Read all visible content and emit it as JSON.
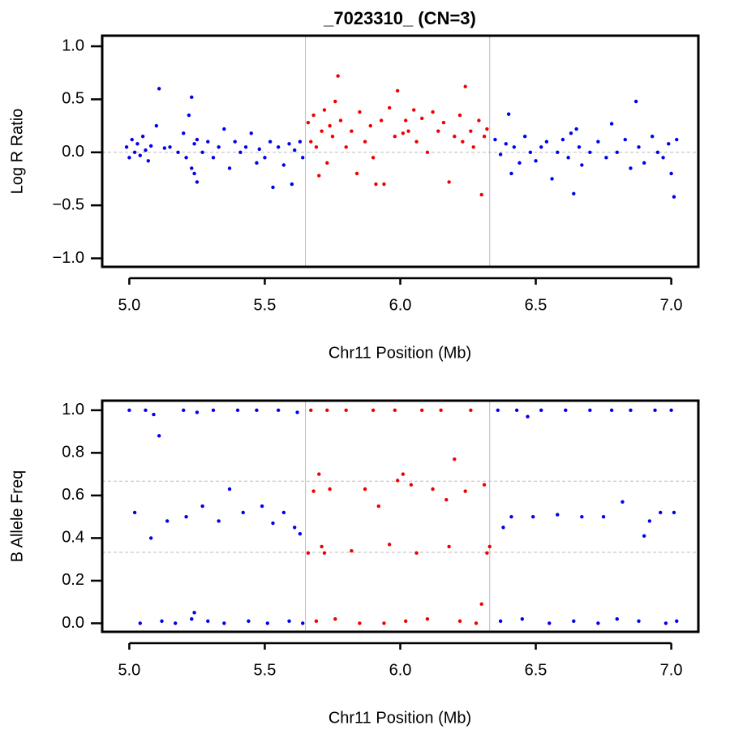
{
  "chart_data": [
    {
      "type": "scatter",
      "title": "_7023310_ (CN=3)",
      "x_label": "Chr11 Position (Mb)",
      "y_label": "Log R Ratio",
      "xlim": [
        4.9,
        7.1
      ],
      "ylim": [
        -1.08,
        1.1
      ],
      "xticks": [
        {
          "value": 5,
          "label": "5.0"
        },
        5.5,
        {
          "value": 6,
          "label": "6.0"
        },
        6.5,
        {
          "value": 7,
          "label": "7.0"
        }
      ],
      "yticks": [
        {
          "value": 1,
          "label": "1.0"
        },
        0.5,
        {
          "value": 0,
          "label": "0.0"
        },
        {
          "value": -0.5,
          "label": "−0.5"
        },
        {
          "value": -1,
          "label": "−1.0"
        }
      ],
      "vlines": [
        5.65,
        6.33
      ],
      "hlines": [
        0
      ],
      "series": [
        {
          "color": "#0000ee",
          "x": [
            4.99,
            5.0,
            5.01,
            5.02,
            5.03,
            5.04,
            5.05,
            5.06,
            5.07,
            5.08,
            5.1,
            5.11,
            5.13,
            5.15,
            5.18,
            5.2,
            5.21,
            5.22,
            5.23,
            5.23,
            5.24,
            5.24,
            5.25,
            5.25,
            5.27,
            5.29,
            5.31,
            5.33,
            5.35,
            5.37,
            5.39,
            5.41,
            5.43,
            5.45,
            5.47,
            5.48,
            5.5,
            5.52,
            5.53,
            5.55,
            5.57,
            5.59,
            5.6,
            5.61,
            5.63,
            5.64,
            6.35,
            6.37,
            6.39,
            6.4,
            6.41,
            6.42,
            6.44,
            6.46,
            6.48,
            6.5,
            6.52,
            6.54,
            6.56,
            6.58,
            6.6,
            6.62,
            6.63,
            6.64,
            6.65,
            6.66,
            6.67,
            6.7,
            6.73,
            6.76,
            6.78,
            6.8,
            6.83,
            6.85,
            6.87,
            6.88,
            6.9,
            6.93,
            6.95,
            6.97,
            6.99,
            7.0,
            7.01,
            7.02
          ],
          "values": [
            0.05,
            -0.05,
            0.12,
            0.0,
            0.08,
            -0.03,
            0.15,
            0.02,
            -0.08,
            0.06,
            0.25,
            0.6,
            0.04,
            0.05,
            0.0,
            0.18,
            -0.05,
            0.35,
            0.52,
            -0.15,
            0.08,
            -0.2,
            0.12,
            -0.28,
            0.0,
            0.1,
            -0.05,
            0.05,
            0.22,
            -0.15,
            0.1,
            0.0,
            0.05,
            0.18,
            -0.1,
            0.03,
            -0.05,
            0.1,
            -0.33,
            0.05,
            -0.12,
            0.08,
            -0.3,
            0.02,
            0.1,
            -0.05,
            0.12,
            -0.02,
            0.08,
            0.36,
            -0.2,
            0.05,
            -0.1,
            0.15,
            0.0,
            -0.08,
            0.05,
            0.1,
            -0.25,
            0.0,
            0.12,
            -0.05,
            0.18,
            -0.39,
            0.22,
            0.05,
            -0.12,
            0.0,
            0.1,
            -0.05,
            0.27,
            0.0,
            0.12,
            -0.15,
            0.48,
            0.05,
            -0.1,
            0.15,
            0.0,
            -0.05,
            0.08,
            -0.2,
            -0.42,
            0.12
          ]
        },
        {
          "color": "#ee0000",
          "x": [
            5.66,
            5.67,
            5.68,
            5.69,
            5.7,
            5.71,
            5.72,
            5.73,
            5.74,
            5.75,
            5.76,
            5.77,
            5.78,
            5.8,
            5.82,
            5.84,
            5.85,
            5.87,
            5.89,
            5.9,
            5.91,
            5.93,
            5.94,
            5.96,
            5.98,
            5.99,
            6.01,
            6.02,
            6.03,
            6.05,
            6.06,
            6.08,
            6.1,
            6.12,
            6.14,
            6.16,
            6.18,
            6.2,
            6.22,
            6.23,
            6.24,
            6.26,
            6.27,
            6.29,
            6.3,
            6.31,
            6.32
          ],
          "values": [
            0.28,
            0.1,
            0.35,
            0.05,
            -0.22,
            0.2,
            0.4,
            -0.1,
            0.25,
            0.15,
            0.48,
            0.72,
            0.3,
            0.05,
            0.2,
            -0.2,
            0.38,
            0.1,
            0.25,
            -0.05,
            -0.3,
            0.3,
            -0.3,
            0.42,
            0.15,
            0.58,
            0.18,
            0.3,
            0.2,
            0.4,
            0.1,
            0.32,
            0.0,
            0.38,
            0.2,
            0.28,
            -0.28,
            0.15,
            0.35,
            0.1,
            0.62,
            0.2,
            0.05,
            0.3,
            -0.4,
            0.15,
            0.22
          ]
        }
      ]
    },
    {
      "type": "scatter",
      "x_label": "Chr11 Position (Mb)",
      "y_label": "B Allele Freq",
      "xlim": [
        4.9,
        7.1
      ],
      "ylim": [
        -0.04,
        1.045
      ],
      "xticks": [
        {
          "value": 5,
          "label": "5.0"
        },
        5.5,
        {
          "value": 6,
          "label": "6.0"
        },
        6.5,
        {
          "value": 7,
          "label": "7.0"
        }
      ],
      "yticks": [
        {
          "value": 0,
          "label": "0.0"
        },
        0.2,
        0.4,
        0.6,
        0.8,
        {
          "value": 1,
          "label": "1.0"
        }
      ],
      "vlines": [
        5.65,
        6.33
      ],
      "hlines": [
        0.333,
        0.667
      ],
      "series": [
        {
          "color": "#0000ee",
          "x": [
            5.0,
            5.02,
            5.04,
            5.06,
            5.08,
            5.09,
            5.11,
            5.12,
            5.14,
            5.17,
            5.2,
            5.21,
            5.23,
            5.24,
            5.25,
            5.27,
            5.29,
            5.31,
            5.33,
            5.35,
            5.37,
            5.4,
            5.42,
            5.44,
            5.47,
            5.49,
            5.51,
            5.53,
            5.55,
            5.57,
            5.59,
            5.61,
            5.62,
            5.63,
            5.64,
            6.36,
            6.37,
            6.38,
            6.41,
            6.43,
            6.45,
            6.47,
            6.49,
            6.52,
            6.55,
            6.58,
            6.61,
            6.64,
            6.67,
            6.7,
            6.73,
            6.75,
            6.78,
            6.8,
            6.82,
            6.85,
            6.88,
            6.9,
            6.92,
            6.94,
            6.96,
            6.98,
            7.0,
            7.01,
            7.02
          ],
          "values": [
            1.0,
            0.52,
            0.0,
            1.0,
            0.4,
            0.98,
            0.88,
            0.01,
            0.48,
            0.0,
            1.0,
            0.5,
            0.02,
            0.05,
            0.99,
            0.55,
            0.01,
            1.0,
            0.48,
            0.0,
            0.63,
            1.0,
            0.52,
            0.01,
            1.0,
            0.55,
            0.0,
            0.47,
            1.0,
            0.52,
            0.01,
            0.45,
            0.99,
            0.42,
            0.0,
            1.0,
            0.01,
            0.45,
            0.5,
            1.0,
            0.02,
            0.97,
            0.5,
            1.0,
            0.0,
            0.51,
            1.0,
            0.01,
            0.5,
            1.0,
            0.0,
            0.5,
            1.0,
            0.02,
            0.57,
            1.0,
            0.01,
            0.41,
            0.48,
            1.0,
            0.52,
            0.0,
            1.0,
            0.52,
            0.01
          ]
        },
        {
          "color": "#ee0000",
          "x": [
            5.66,
            5.67,
            5.68,
            5.69,
            5.7,
            5.71,
            5.72,
            5.73,
            5.74,
            5.76,
            5.8,
            5.82,
            5.85,
            5.87,
            5.9,
            5.92,
            5.94,
            5.96,
            5.98,
            5.99,
            6.01,
            6.02,
            6.04,
            6.06,
            6.08,
            6.1,
            6.12,
            6.15,
            6.17,
            6.18,
            6.2,
            6.22,
            6.24,
            6.26,
            6.28,
            6.3,
            6.31,
            6.32,
            6.33
          ],
          "values": [
            0.33,
            1.0,
            0.62,
            0.01,
            0.7,
            0.36,
            0.33,
            1.0,
            0.63,
            0.02,
            1.0,
            0.34,
            0.0,
            0.63,
            1.0,
            0.55,
            0.0,
            0.37,
            1.0,
            0.67,
            0.7,
            0.01,
            0.65,
            0.33,
            1.0,
            0.02,
            0.63,
            1.0,
            0.58,
            0.36,
            0.77,
            0.01,
            0.62,
            1.0,
            0.0,
            0.09,
            0.65,
            0.33,
            0.36
          ]
        }
      ]
    }
  ]
}
